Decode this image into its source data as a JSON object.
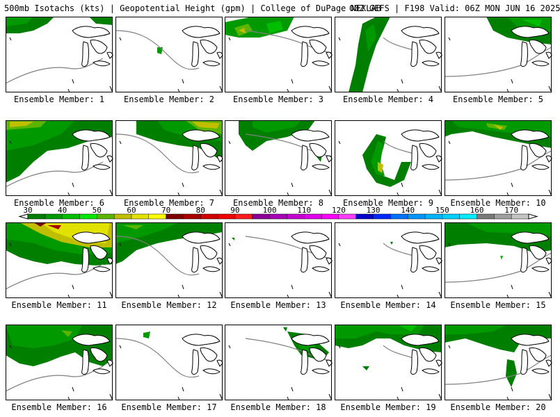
{
  "header": {
    "left": "500mb Isotachs (kts) | Geopotential Height (gpm) | College of DuPage NEXLAB",
    "right": "00Z GEFS | F198 Valid: 06Z MON JUN 16 2025"
  },
  "colorbar": {
    "tick_labels": [
      "30",
      "40",
      "50",
      "60",
      "70",
      "80",
      "90",
      "100",
      "110",
      "120",
      "130",
      "140",
      "150",
      "160",
      "170"
    ],
    "colors": [
      "#007e00",
      "#009a00",
      "#00bd00",
      "#00e700",
      "#5ab400",
      "#bfbf00",
      "#e2e200",
      "#ffff00",
      "#7e0000",
      "#a80000",
      "#d00000",
      "#ee0000",
      "#ff1b1b",
      "#8c0096",
      "#a600b4",
      "#c400d0",
      "#de00e8",
      "#ff00ff",
      "#ff3cff",
      "#0000c8",
      "#0028ff",
      "#0070ff",
      "#0096ff",
      "#00b4ff",
      "#00d0ff",
      "#00ecff",
      "#7a7a7a",
      "#a0a0a0",
      "#c4c4c4"
    ]
  },
  "panels": [
    {
      "label": "Ensemble Member: 1"
    },
    {
      "label": "Ensemble Member: 2"
    },
    {
      "label": "Ensemble Member: 3"
    },
    {
      "label": "Ensemble Member: 4"
    },
    {
      "label": "Ensemble Member: 5"
    },
    {
      "label": "Ensemble Member: 6"
    },
    {
      "label": "Ensemble Member: 7"
    },
    {
      "label": "Ensemble Member: 8"
    },
    {
      "label": "Ensemble Member: 9"
    },
    {
      "label": "Ensemble Member: 10"
    },
    {
      "label": "Ensemble Member: 11"
    },
    {
      "label": "Ensemble Member: 12"
    },
    {
      "label": "Ensemble Member: 13"
    },
    {
      "label": "Ensemble Member: 14"
    },
    {
      "label": "Ensemble Member: 15"
    },
    {
      "label": "Ensemble Member: 16"
    },
    {
      "label": "Ensemble Member: 17"
    },
    {
      "label": "Ensemble Member: 18"
    },
    {
      "label": "Ensemble Member: 19"
    },
    {
      "label": "Ensemble Member: 20"
    }
  ]
}
